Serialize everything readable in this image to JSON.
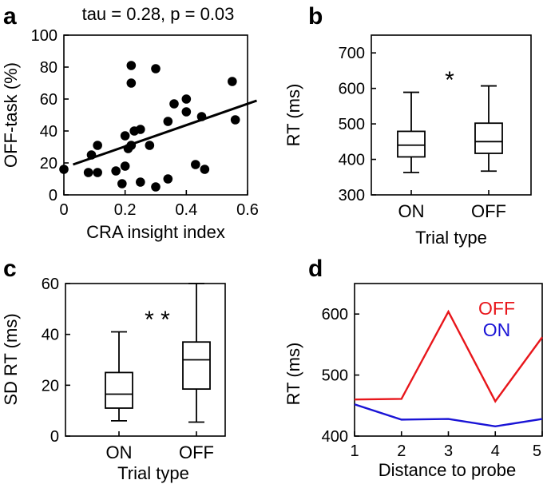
{
  "chart_data": [
    {
      "panel": "a",
      "type": "scatter",
      "title": "tau = 0.28, p = 0.03",
      "xlabel": "CRA insight index",
      "ylabel": "OFF-task (%)",
      "xlim": [
        0,
        0.6
      ],
      "ylim": [
        0,
        100
      ],
      "xticks": [
        0,
        0.2,
        0.4,
        0.6
      ],
      "xticklabels": [
        "0",
        "0.2",
        "0.4",
        "0.6"
      ],
      "yticks": [
        0,
        20,
        40,
        60,
        80,
        100
      ],
      "yticklabels": [
        "0",
        "20",
        "40",
        "60",
        "80",
        "100"
      ],
      "points": [
        [
          0.0,
          16
        ],
        [
          0.08,
          14
        ],
        [
          0.09,
          25
        ],
        [
          0.11,
          14
        ],
        [
          0.11,
          31
        ],
        [
          0.17,
          15
        ],
        [
          0.19,
          7
        ],
        [
          0.2,
          18
        ],
        [
          0.2,
          37
        ],
        [
          0.21,
          29
        ],
        [
          0.22,
          81
        ],
        [
          0.22,
          70
        ],
        [
          0.22,
          31
        ],
        [
          0.23,
          40
        ],
        [
          0.25,
          41
        ],
        [
          0.25,
          8
        ],
        [
          0.3,
          79
        ],
        [
          0.3,
          5
        ],
        [
          0.34,
          10
        ],
        [
          0.34,
          46
        ],
        [
          0.36,
          57
        ],
        [
          0.4,
          60
        ],
        [
          0.4,
          52
        ],
        [
          0.43,
          19
        ],
        [
          0.45,
          49
        ],
        [
          0.46,
          16
        ],
        [
          0.55,
          71
        ],
        [
          0.56,
          47
        ],
        [
          0.28,
          31
        ]
      ],
      "fit_line": [
        [
          0.03,
          19
        ],
        [
          0.63,
          59
        ]
      ]
    },
    {
      "panel": "b",
      "type": "box",
      "xlabel": "Trial type",
      "ylabel": "RT (ms)",
      "ylim": [
        300,
        750
      ],
      "yticks": [
        300,
        400,
        500,
        600,
        700
      ],
      "yticklabels": [
        "300",
        "400",
        "500",
        "600",
        "700"
      ],
      "categories": [
        "ON",
        "OFF"
      ],
      "boxes": [
        {
          "whisker_low": 363,
          "q1": 407,
          "median": 440,
          "q3": 479,
          "whisker_high": 589
        },
        {
          "whisker_low": 367,
          "q1": 417,
          "median": 450,
          "q3": 502,
          "whisker_high": 607
        }
      ],
      "annotation": "*"
    },
    {
      "panel": "c",
      "type": "box",
      "xlabel": "Trial type",
      "ylabel": "SD RT (ms)",
      "ylim": [
        0,
        60
      ],
      "yticks": [
        0,
        20,
        40,
        60
      ],
      "yticklabels": [
        "0",
        "20",
        "40",
        "60"
      ],
      "categories": [
        "ON",
        "OFF"
      ],
      "boxes": [
        {
          "whisker_low": 6,
          "q1": 11,
          "median": 16.5,
          "q3": 25,
          "whisker_high": 41
        },
        {
          "whisker_low": 5.5,
          "q1": 18.5,
          "median": 30,
          "q3": 37,
          "whisker_high": 60
        }
      ],
      "annotation": "* *"
    },
    {
      "panel": "d",
      "type": "line",
      "xlabel": "Distance to probe",
      "ylabel": "RT (ms)",
      "xlim": [
        1,
        5
      ],
      "ylim": [
        400,
        650
      ],
      "xticks": [
        1,
        2,
        3,
        4,
        5
      ],
      "xticklabels": [
        "1",
        "2",
        "3",
        "4",
        "5"
      ],
      "yticks": [
        400,
        500,
        600
      ],
      "yticklabels": [
        "400",
        "500",
        "600"
      ],
      "x": [
        1,
        2,
        3,
        4,
        5
      ],
      "series": [
        {
          "name": "OFF",
          "color": "#e8161b",
          "values": [
            460,
            461,
            604,
            457,
            562
          ]
        },
        {
          "name": "ON",
          "color": "#1a14d6",
          "values": [
            452,
            427,
            428,
            416,
            428
          ]
        }
      ]
    }
  ]
}
